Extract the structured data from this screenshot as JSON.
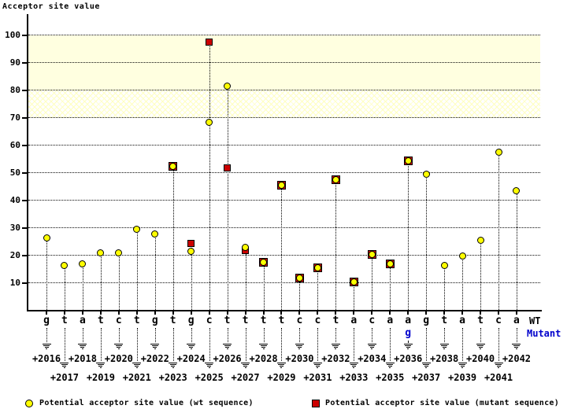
{
  "title": "Acceptor site value",
  "labels": {
    "wt_row": "WT",
    "mutant_row": "Mutant"
  },
  "legend": {
    "wt": "Potential acceptor site value (wt sequence)",
    "mutant": "Potential acceptor site value (mutant sequence)"
  },
  "colors": {
    "wt_marker": "#FFFF00",
    "mutant_marker": "#CC0000",
    "mutant_text": "#0000CC",
    "band_solid": "#FFFFE0",
    "axis": "#000000"
  },
  "chart_data": {
    "type": "scatter",
    "title": "Acceptor site value",
    "xlabel": "",
    "ylabel": "Acceptor site value",
    "ylim": [
      0,
      105
    ],
    "yticks": [
      10,
      20,
      30,
      40,
      50,
      60,
      70,
      80,
      90,
      100
    ],
    "grid": "dotted horizontal",
    "legend_position": "bottom",
    "bands": [
      {
        "from": 80,
        "to": 100,
        "style": "solid-lightyellow"
      },
      {
        "from": 70,
        "to": 80,
        "style": "hatched-lightyellow"
      }
    ],
    "mutation": {
      "position": "+2036",
      "wt_base": "a",
      "mutant_base": "g"
    },
    "series": [
      {
        "name": "Potential acceptor site value (wt sequence)",
        "marker": "circle",
        "color": "#FFFF00"
      },
      {
        "name": "Potential acceptor site value (mutant sequence)",
        "marker": "square",
        "color": "#CC0000"
      }
    ],
    "points": [
      {
        "position": "+2016",
        "base": "g",
        "wt": 26.5,
        "mutant": null
      },
      {
        "position": "+2017",
        "base": "t",
        "wt": 16.5,
        "mutant": null
      },
      {
        "position": "+2018",
        "base": "a",
        "wt": 17,
        "mutant": null
      },
      {
        "position": "+2019",
        "base": "t",
        "wt": 21,
        "mutant": null
      },
      {
        "position": "+2020",
        "base": "c",
        "wt": 21,
        "mutant": null
      },
      {
        "position": "+2021",
        "base": "t",
        "wt": 29.5,
        "mutant": null
      },
      {
        "position": "+2022",
        "base": "g",
        "wt": 28,
        "mutant": null
      },
      {
        "position": "+2023",
        "base": "t",
        "wt": 52.5,
        "mutant": 52.5
      },
      {
        "position": "+2024",
        "base": "g",
        "wt": 21.5,
        "mutant": 24.5
      },
      {
        "position": "+2025",
        "base": "c",
        "wt": 68.5,
        "mutant": 97.5
      },
      {
        "position": "+2026",
        "base": "t",
        "wt": 81.5,
        "mutant": 52
      },
      {
        "position": "+2027",
        "base": "t",
        "wt": 23,
        "mutant": 22
      },
      {
        "position": "+2028",
        "base": "t",
        "wt": 17.5,
        "mutant": 17.5
      },
      {
        "position": "+2029",
        "base": "t",
        "wt": 45.5,
        "mutant": 45.5
      },
      {
        "position": "+2030",
        "base": "c",
        "wt": 12,
        "mutant": 12
      },
      {
        "position": "+2031",
        "base": "c",
        "wt": 15.5,
        "mutant": 15.5
      },
      {
        "position": "+2032",
        "base": "t",
        "wt": 47.5,
        "mutant": 47.5
      },
      {
        "position": "+2033",
        "base": "a",
        "wt": 10.5,
        "mutant": 10.5
      },
      {
        "position": "+2034",
        "base": "c",
        "wt": 20.5,
        "mutant": 20.5
      },
      {
        "position": "+2035",
        "base": "a",
        "wt": 17,
        "mutant": 17
      },
      {
        "position": "+2036",
        "base": "a",
        "mutant_base": "g",
        "wt": 54.5,
        "mutant": 54.5
      },
      {
        "position": "+2037",
        "base": "g",
        "wt": 49.5,
        "mutant": null
      },
      {
        "position": "+2038",
        "base": "t",
        "wt": 16.5,
        "mutant": null
      },
      {
        "position": "+2039",
        "base": "a",
        "wt": 20,
        "mutant": null
      },
      {
        "position": "+2040",
        "base": "t",
        "wt": 25.5,
        "mutant": null
      },
      {
        "position": "+2041",
        "base": "c",
        "wt": 57.5,
        "mutant": null
      },
      {
        "position": "+2042",
        "base": "a",
        "wt": 43.5,
        "mutant": null
      }
    ]
  }
}
